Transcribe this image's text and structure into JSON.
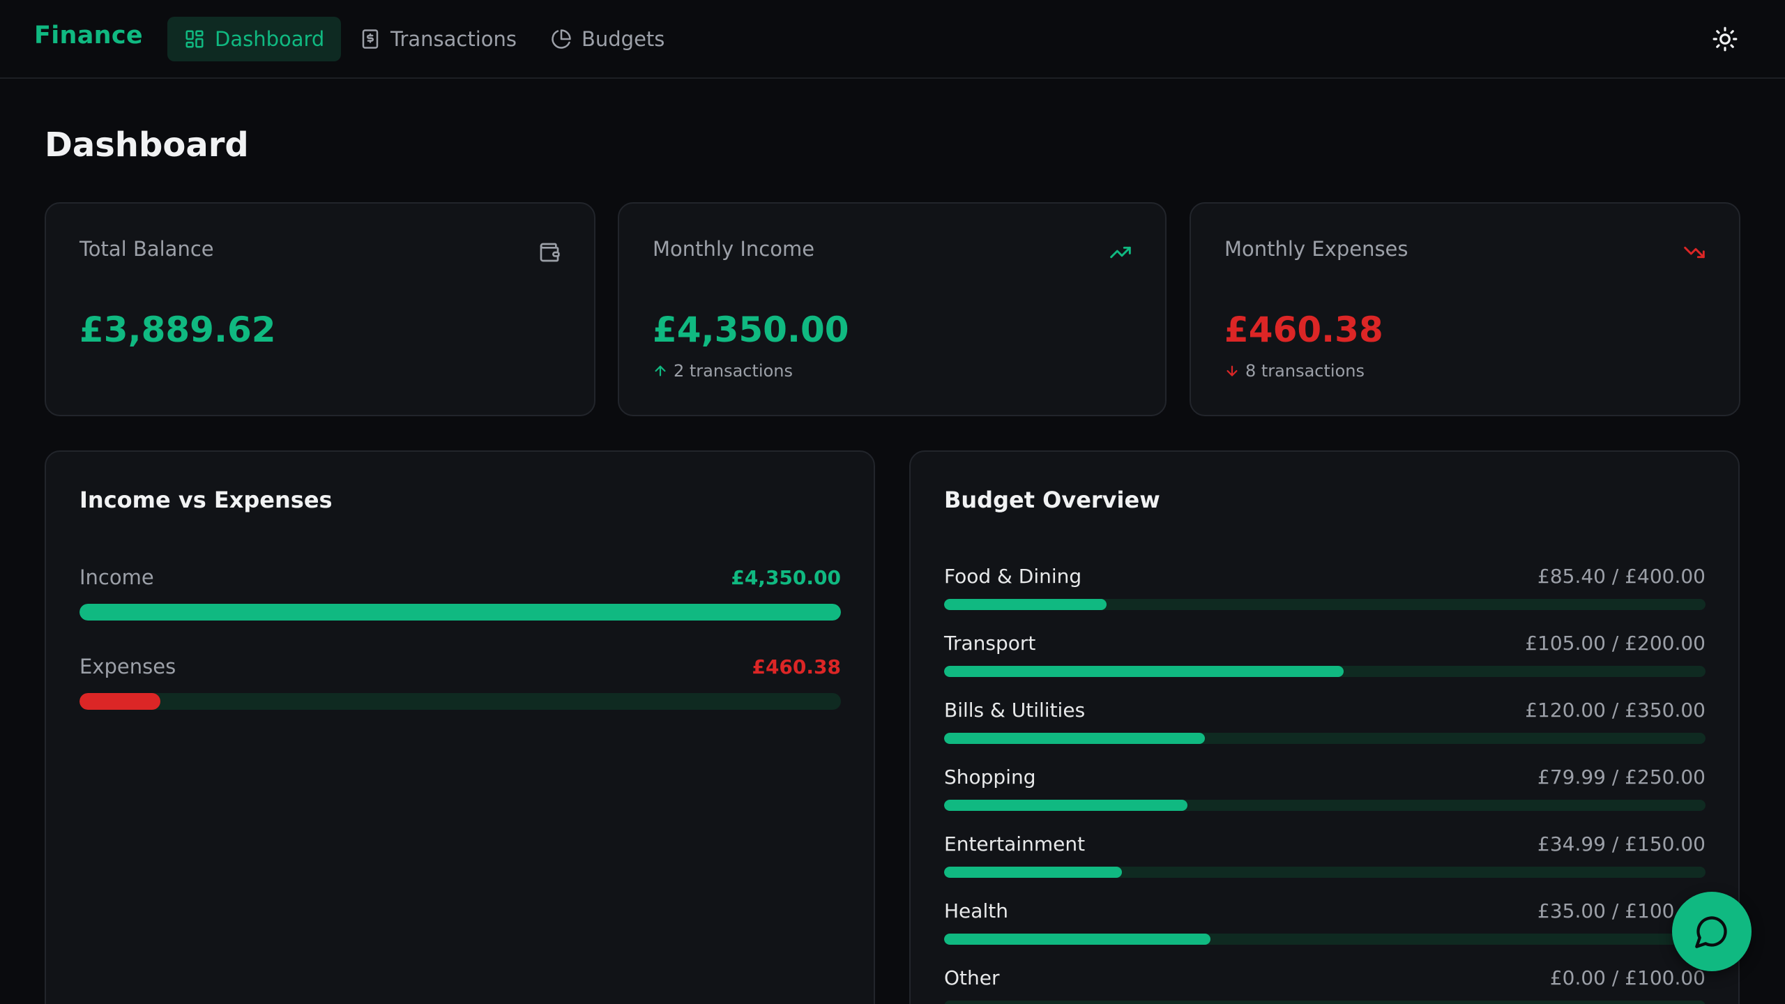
{
  "app": {
    "brand": "Finance"
  },
  "nav": {
    "items": [
      {
        "label": "Dashboard",
        "icon": "layout-grid-icon",
        "active": true
      },
      {
        "label": "Transactions",
        "icon": "receipt-icon",
        "active": false
      },
      {
        "label": "Budgets",
        "icon": "pie-chart-icon",
        "active": false
      }
    ],
    "theme_icon": "sun-icon"
  },
  "page": {
    "title": "Dashboard"
  },
  "stats": [
    {
      "label": "Total Balance",
      "value": "£3,889.62",
      "icon": "wallet-icon",
      "sub": ""
    },
    {
      "label": "Monthly Income",
      "value": "£4,350.00",
      "icon": "trending-up-icon",
      "sub": "2 transactions",
      "sub_icon": "arrow-up-icon"
    },
    {
      "label": "Monthly Expenses",
      "value": "£460.38",
      "icon": "trending-down-icon",
      "sub": "8 transactions",
      "sub_icon": "arrow-down-icon"
    }
  ],
  "income_vs_expenses": {
    "title": "Income vs Expenses",
    "rows": [
      {
        "label": "Income",
        "amount": "£4,350.00",
        "fraction": 1.0
      },
      {
        "label": "Expenses",
        "amount": "£460.38",
        "fraction": 0.1058
      }
    ]
  },
  "budget_overview": {
    "title": "Budget Overview",
    "items": [
      {
        "name": "Food & Dining",
        "amount": "£85.40 / £400.00",
        "fraction": 0.2135
      },
      {
        "name": "Transport",
        "amount": "£105.00 / £200.00",
        "fraction": 0.525
      },
      {
        "name": "Bills & Utilities",
        "amount": "£120.00 / £350.00",
        "fraction": 0.3429
      },
      {
        "name": "Shopping",
        "amount": "£79.99 / £250.00",
        "fraction": 0.32
      },
      {
        "name": "Entertainment",
        "amount": "£34.99 / £150.00",
        "fraction": 0.2333
      },
      {
        "name": "Health",
        "amount": "£35.00 / £100.00",
        "fraction": 0.35
      },
      {
        "name": "Other",
        "amount": "£0.00 / £100.00",
        "fraction": 0.0
      }
    ]
  },
  "colors": {
    "accent": "#10b981",
    "danger": "#dc2626",
    "background": "#0a0b0e",
    "card": "#111317",
    "track": "#0f2a21"
  },
  "fab": {
    "icon": "chat-bubble-icon"
  }
}
